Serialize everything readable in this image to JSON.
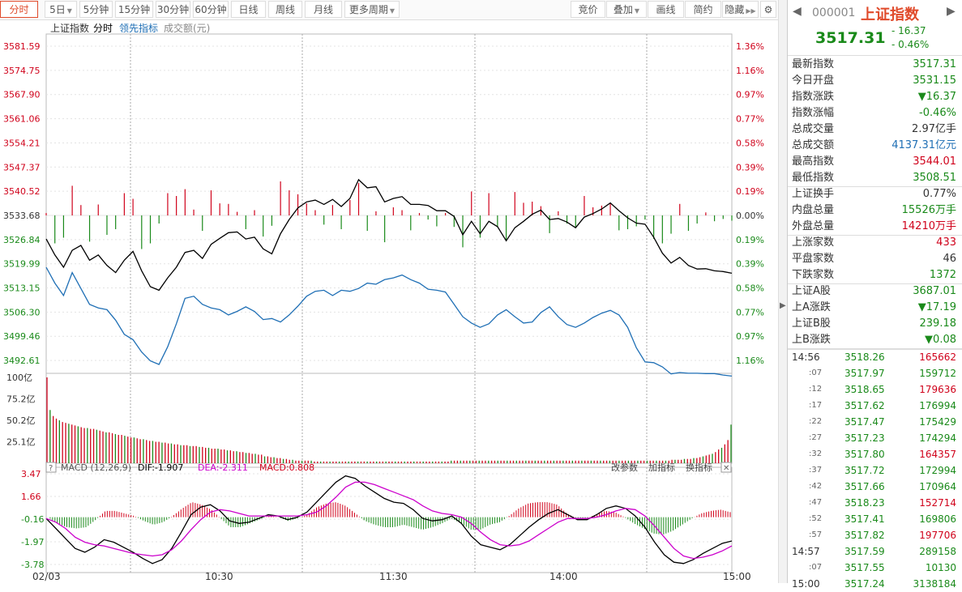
{
  "toolbar": {
    "tabs": [
      "分时",
      "5日",
      "5分钟",
      "15分钟",
      "30分钟",
      "60分钟",
      "日线",
      "周线",
      "月线",
      "更多周期"
    ],
    "right": [
      "竞价",
      "叠加",
      "画线",
      "简约",
      "隐藏"
    ]
  },
  "legend": {
    "name": "上证指数",
    "mode": "分时",
    "lead": "领先指标",
    "amount": "成交额(元)"
  },
  "macd_header": {
    "title": "MACD (12,26,9)",
    "dif": "DIF:-1.907",
    "dea": "DEA:-2.311",
    "macd": "MACD:0.808"
  },
  "macd_buttons": [
    "改参数",
    "加指标",
    "换指标"
  ],
  "colors": {
    "up": "#d0021b",
    "down": "#1a8a1a",
    "price": "#000000",
    "lead": "#1f6fb5",
    "dea": "#cc00cc",
    "grid": "#e3e3e3"
  },
  "chart_data": {
    "type": "line",
    "prev_close": 3533.68,
    "x_labels": [
      "02/03",
      "10:30",
      "11:30",
      "14:00",
      "15:00"
    ],
    "y_left": [
      "3581.59",
      "3574.75",
      "3567.90",
      "3561.06",
      "3554.21",
      "3547.37",
      "3540.52",
      "3533.68",
      "3526.84",
      "3519.99",
      "3513.15",
      "3506.30",
      "3499.46",
      "3492.61"
    ],
    "y_right": [
      "1.36%",
      "1.16%",
      "0.97%",
      "0.77%",
      "0.58%",
      "0.39%",
      "0.19%",
      "0.00%",
      "0.19%",
      "0.39%",
      "0.58%",
      "0.77%",
      "0.97%",
      "1.16%"
    ],
    "ylim": [
      3489.2,
      3583.2
    ],
    "series": [
      {
        "name": "上证指数",
        "values": [
          3527.0,
          3522.5,
          3519.0,
          3523.8,
          3525.2,
          3521.0,
          3522.5,
          3519.5,
          3517.5,
          3521.0,
          3523.5,
          3518.0,
          3513.5,
          3512.5,
          3516.0,
          3519.0,
          3523.2,
          3523.8,
          3521.5,
          3525.5,
          3527.2,
          3528.8,
          3529.0,
          3527.0,
          3527.5,
          3524.2,
          3522.8,
          3528.5,
          3532.5,
          3535.8,
          3537.5,
          3538.0,
          3536.8,
          3538.2,
          3536.2,
          3538.5,
          3543.8,
          3541.5,
          3541.8,
          3537.5,
          3538.5,
          3539.0,
          3536.8,
          3536.8,
          3536.5,
          3535.0,
          3535.0,
          3533.4,
          3528.2,
          3532.0,
          3528.5,
          3532.0,
          3530.5,
          3526.5,
          3530.2,
          3532.0,
          3534.0,
          3535.2,
          3532.5,
          3532.8,
          3531.8,
          3530.2,
          3533.2,
          3534.2,
          3535.5,
          3537.2,
          3535.0,
          3533.0,
          3531.5,
          3531.2,
          3527.5,
          3523.0,
          3520.2,
          3521.8,
          3519.5,
          3518.5,
          3518.6,
          3518.0,
          3517.8,
          3517.3
        ]
      },
      {
        "name": "领先指标",
        "values": [
          3519.0,
          3514.5,
          3511.0,
          3517.5,
          3513.0,
          3508.5,
          3507.5,
          3507.0,
          3504.0,
          3500.0,
          3498.5,
          3495.0,
          3492.5,
          3491.5,
          3496.5,
          3503.0,
          3510.2,
          3510.8,
          3508.5,
          3507.5,
          3507.0,
          3505.5,
          3506.5,
          3507.8,
          3506.5,
          3504.2,
          3504.5,
          3503.5,
          3505.5,
          3508.0,
          3510.8,
          3512.2,
          3512.5,
          3511.0,
          3512.5,
          3512.2,
          3513.0,
          3514.5,
          3514.2,
          3515.5,
          3516.0,
          3516.8,
          3515.5,
          3514.5,
          3512.8,
          3512.5,
          3512.0,
          3508.5,
          3505.0,
          3503.2,
          3502.0,
          3503.0,
          3505.5,
          3507.0,
          3505.0,
          3503.2,
          3503.5,
          3506.2,
          3507.8,
          3505.0,
          3502.8,
          3502.0,
          3503.2,
          3504.8,
          3506.0,
          3506.8,
          3505.5,
          3502.0,
          3496.2,
          3492.2,
          3492.0,
          3490.8,
          3488.8,
          3489.2,
          3489.0,
          3489.0,
          3488.9,
          3488.9,
          3488.5,
          3488.2
        ]
      }
    ],
    "vol_labels": [
      "100亿",
      "75.2亿",
      "50.2亿",
      "25.1亿"
    ],
    "volume": [
      100,
      62,
      55,
      52,
      50,
      48,
      47,
      46,
      45,
      44,
      43,
      42,
      41,
      41,
      40,
      40,
      39,
      38,
      37,
      36,
      36,
      35,
      34,
      33,
      33,
      32,
      31,
      30,
      30,
      29,
      28,
      28,
      27,
      26,
      26,
      25,
      25,
      24,
      24,
      23,
      23,
      22,
      22,
      21,
      21,
      21,
      20,
      20,
      20,
      19,
      19,
      18,
      18,
      17,
      17,
      17,
      16,
      16,
      15,
      15,
      14,
      14,
      13,
      13,
      12,
      12,
      11,
      11,
      10,
      10,
      8,
      8,
      7,
      7,
      6,
      6,
      5,
      5,
      4,
      4,
      3,
      3,
      3,
      3,
      3,
      3,
      2,
      2,
      2,
      2,
      2,
      2,
      2,
      2,
      2,
      2,
      2,
      2,
      2,
      2,
      2,
      2,
      2,
      2,
      2,
      2,
      2,
      2,
      2,
      2,
      2,
      2,
      2,
      2,
      2,
      2,
      2,
      2,
      2,
      2,
      2,
      2,
      2,
      2,
      2,
      2,
      2,
      2,
      2,
      2,
      3,
      3,
      3,
      3,
      3,
      3,
      3,
      3,
      3,
      3,
      3,
      3,
      3,
      3,
      3,
      3,
      3,
      3,
      3,
      3,
      3,
      3,
      3,
      3,
      3,
      3,
      3,
      3,
      3,
      3,
      3,
      3,
      3,
      3,
      3,
      3,
      3,
      3,
      3,
      3,
      3,
      3,
      3,
      3,
      3,
      3,
      3,
      3,
      3,
      3,
      3,
      3,
      3,
      3,
      3,
      3,
      3,
      3,
      3,
      3,
      3,
      3,
      3,
      3,
      3,
      3,
      3,
      3,
      3,
      3,
      3,
      4,
      4,
      4,
      4,
      5,
      5,
      5,
      6,
      6,
      7,
      8,
      9,
      10,
      11,
      13,
      16,
      18,
      22,
      27,
      45
    ],
    "macd_labels": [
      "3.47",
      "1.66",
      "-0.16",
      "-1.97",
      "-3.78"
    ],
    "macd_ylim": [
      -3.78,
      3.47
    ],
    "dif": [
      -0.1,
      -0.9,
      -1.7,
      -2.5,
      -2.8,
      -2.4,
      -1.8,
      -2.0,
      -2.4,
      -2.8,
      -3.3,
      -3.7,
      -3.4,
      -2.5,
      -1.2,
      0.2,
      0.8,
      1.0,
      0.5,
      -0.3,
      -0.5,
      -0.4,
      -0.1,
      0.2,
      0.1,
      -0.2,
      0.0,
      0.4,
      1.2,
      2.0,
      2.8,
      3.3,
      3.1,
      2.5,
      2.0,
      1.5,
      1.2,
      1.1,
      0.6,
      -0.1,
      -0.3,
      -0.2,
      0.1,
      -0.5,
      -1.5,
      -2.2,
      -2.4,
      -2.6,
      -2.2,
      -1.5,
      -0.8,
      -0.2,
      0.3,
      0.6,
      0.2,
      -0.2,
      -0.2,
      0.2,
      0.7,
      0.9,
      0.7,
      0.1,
      -0.8,
      -2.0,
      -3.0,
      -3.6,
      -3.7,
      -3.4,
      -2.9,
      -2.5,
      -2.1,
      -1.9
    ],
    "dea": [
      -0.1,
      -0.4,
      -0.9,
      -1.6,
      -2.0,
      -2.2,
      -2.3,
      -2.5,
      -2.7,
      -2.9,
      -3.0,
      -3.1,
      -3.0,
      -2.6,
      -1.9,
      -1.0,
      -0.2,
      0.4,
      0.6,
      0.5,
      0.3,
      0.1,
      0.1,
      0.1,
      0.1,
      0.1,
      0.1,
      0.2,
      0.4,
      0.9,
      1.6,
      2.4,
      2.8,
      2.8,
      2.6,
      2.3,
      2.0,
      1.7,
      1.4,
      0.9,
      0.5,
      0.3,
      0.2,
      0.0,
      -0.5,
      -1.2,
      -1.8,
      -2.2,
      -2.3,
      -2.2,
      -1.9,
      -1.4,
      -0.9,
      -0.4,
      -0.1,
      -0.1,
      -0.1,
      0.0,
      0.2,
      0.5,
      0.7,
      0.6,
      0.1,
      -0.7,
      -1.6,
      -2.5,
      -3.1,
      -3.3,
      -3.2,
      -3.0,
      -2.7,
      -2.3
    ],
    "macd_hist": [
      0.0,
      -0.5,
      -0.8,
      -0.9,
      -0.8,
      -0.2,
      0.5,
      0.5,
      0.3,
      0.1,
      -0.3,
      -0.6,
      -0.4,
      0.1,
      0.7,
      1.2,
      1.0,
      0.6,
      -0.1,
      -0.8,
      -0.8,
      -0.5,
      -0.2,
      0.1,
      0.0,
      -0.3,
      -0.1,
      0.2,
      0.8,
      1.1,
      1.2,
      0.9,
      0.3,
      -0.3,
      -0.6,
      -0.8,
      -0.8,
      -0.6,
      -0.8,
      -1.0,
      -0.8,
      -0.5,
      -0.1,
      -0.5,
      -1.0,
      -1.0,
      -0.6,
      -0.4,
      0.1,
      0.7,
      1.1,
      1.2,
      1.2,
      1.0,
      0.3,
      -0.1,
      -0.1,
      0.2,
      0.5,
      0.4,
      0.0,
      -0.5,
      -0.9,
      -1.3,
      -1.4,
      -1.1,
      -0.6,
      -0.1,
      0.3,
      0.5,
      0.6,
      0.4
    ]
  },
  "sidepanel": {
    "code": "000001",
    "name": "上证指数",
    "price": "3517.31",
    "change": "- 16.37",
    "pct": "- 0.46%",
    "stats": [
      {
        "label": "最新指数",
        "value": "3517.31",
        "color": "green"
      },
      {
        "label": "今日开盘",
        "value": "3531.15",
        "color": "green"
      },
      {
        "label": "指数涨跌",
        "value": "▼16.37",
        "color": "green"
      },
      {
        "label": "指数涨幅",
        "value": "-0.46%",
        "color": "green"
      },
      {
        "label": "总成交量",
        "value": "2.97亿手",
        "color": "dark"
      },
      {
        "label": "总成交额",
        "value": "4137.31亿元",
        "color": "blue"
      },
      {
        "label": "最高指数",
        "value": "3544.01",
        "color": "red"
      },
      {
        "label": "最低指数",
        "value": "3508.51",
        "color": "green"
      },
      {
        "label": "上证换手",
        "value": "0.77%",
        "color": "dark"
      },
      {
        "label": "内盘总量",
        "value": "15526万手",
        "color": "green"
      },
      {
        "label": "外盘总量",
        "value": "14210万手",
        "color": "red"
      },
      {
        "label": "上涨家数",
        "value": "433",
        "color": "red"
      },
      {
        "label": "平盘家数",
        "value": "46",
        "color": "dark"
      },
      {
        "label": "下跌家数",
        "value": "1372",
        "color": "green"
      },
      {
        "label": "上证A股",
        "value": "3687.01",
        "color": "green"
      },
      {
        "label": "上A涨跌",
        "value": "▼17.19",
        "color": "green"
      },
      {
        "label": "上证B股",
        "value": "239.18",
        "color": "green"
      },
      {
        "label": "上B涨跌",
        "value": "▼0.08",
        "color": "green"
      }
    ],
    "ticks": [
      {
        "time": "14:56",
        "price": "3518.26",
        "vol": "165662",
        "vcolor": "red",
        "big": true
      },
      {
        "time": ":07",
        "price": "3517.97",
        "vol": "159712",
        "vcolor": "green",
        "big": false
      },
      {
        "time": ":12",
        "price": "3518.65",
        "vol": "179636",
        "vcolor": "red",
        "big": false
      },
      {
        "time": ":17",
        "price": "3517.62",
        "vol": "176994",
        "vcolor": "green",
        "big": false
      },
      {
        "time": ":22",
        "price": "3517.47",
        "vol": "175429",
        "vcolor": "green",
        "big": false
      },
      {
        "time": ":27",
        "price": "3517.23",
        "vol": "174294",
        "vcolor": "green",
        "big": false
      },
      {
        "time": ":32",
        "price": "3517.80",
        "vol": "164357",
        "vcolor": "red",
        "big": false
      },
      {
        "time": ":37",
        "price": "3517.72",
        "vol": "172994",
        "vcolor": "green",
        "big": false
      },
      {
        "time": ":42",
        "price": "3517.66",
        "vol": "170964",
        "vcolor": "green",
        "big": false
      },
      {
        "time": ":47",
        "price": "3518.23",
        "vol": "152714",
        "vcolor": "red",
        "big": false
      },
      {
        "time": ":52",
        "price": "3517.41",
        "vol": "169806",
        "vcolor": "green",
        "big": false
      },
      {
        "time": ":57",
        "price": "3517.82",
        "vol": "197706",
        "vcolor": "red",
        "big": false
      },
      {
        "time": "14:57",
        "price": "3517.59",
        "vol": "289158",
        "vcolor": "green",
        "big": true
      },
      {
        "time": ":07",
        "price": "3517.55",
        "vol": "10130",
        "vcolor": "green",
        "big": false
      },
      {
        "time": "15:00",
        "price": "3517.24",
        "vol": "3138184",
        "vcolor": "green",
        "big": true
      }
    ]
  }
}
